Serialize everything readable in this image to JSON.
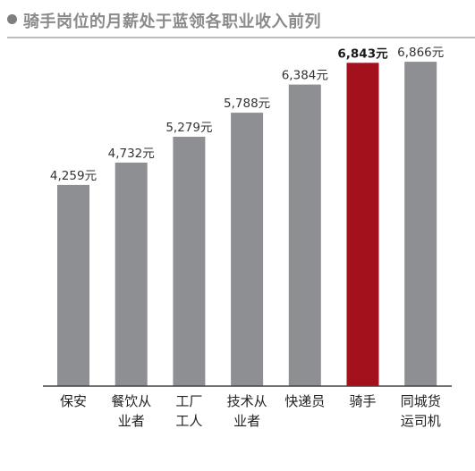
{
  "header": {
    "title": "骑手岗位的月薪处于蓝领各职业收入前列"
  },
  "colors": {
    "bar": "#8d8f93",
    "highlight": "#a3111c",
    "axis": "#444444",
    "header_text": "#8a8a8a"
  },
  "chart_data": {
    "type": "bar",
    "title": "骑手岗位的月薪处于蓝领各职业收入前列",
    "categories": [
      [
        "保安"
      ],
      [
        "餐饮从",
        "业者"
      ],
      [
        "工厂",
        "工人"
      ],
      [
        "技术从",
        "业者"
      ],
      [
        "快递员"
      ],
      [
        "骑手"
      ],
      [
        "同城货",
        "运司机"
      ]
    ],
    "values": [
      4259,
      4732,
      5279,
      5788,
      6384,
      6843,
      6866
    ],
    "value_labels": [
      "4,259元",
      "4,732元",
      "5,279元",
      "5,788元",
      "6,384元",
      "6,843元",
      "6,866元"
    ],
    "highlight_index": 5,
    "xlabel": "",
    "ylabel": "",
    "ylim": [
      0,
      7000
    ],
    "grid": false,
    "legend": "none"
  }
}
